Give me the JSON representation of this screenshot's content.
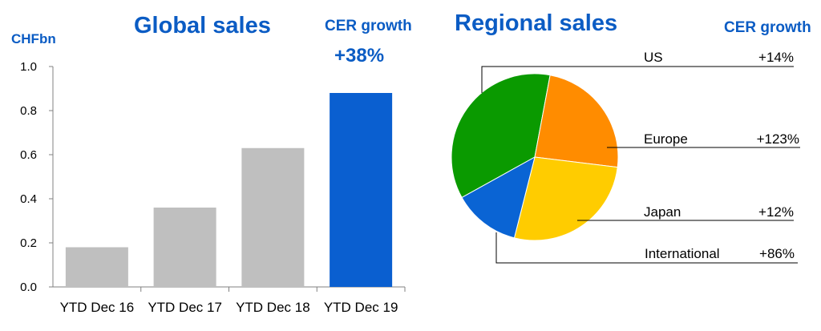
{
  "global": {
    "title": "Global sales",
    "cer_header": "CER growth",
    "cer_value": "+38%",
    "unit": "CHFbn"
  },
  "regional": {
    "title": "Regional sales",
    "cer_header": "CER growth"
  },
  "colors": {
    "accent": "#0b5cc4",
    "gray_bar": "#bfbfbf",
    "highlight_bar": "#0a5fd0",
    "green": "#0a9a00",
    "orange": "#ff8c00",
    "yellow": "#ffcc00",
    "blue": "#0a64d4"
  },
  "chart_data": [
    {
      "type": "bar",
      "title": "Global sales",
      "ylabel": "CHFbn",
      "categories": [
        "YTD Dec 16",
        "YTD Dec 17",
        "YTD Dec 18",
        "YTD Dec 19"
      ],
      "values": [
        0.18,
        0.36,
        0.63,
        0.88
      ],
      "ylim": [
        0,
        1.0
      ],
      "yticks": [
        "0.0",
        "0.2",
        "0.4",
        "0.6",
        "0.8",
        "1.0"
      ],
      "grid": false,
      "highlight_index": 3
    },
    {
      "type": "pie",
      "title": "Regional sales",
      "slices": [
        {
          "label": "US",
          "growth": "+14%",
          "value": 36
        },
        {
          "label": "Europe",
          "growth": "+123%",
          "value": 24
        },
        {
          "label": "Japan",
          "growth": "+12%",
          "value": 27
        },
        {
          "label": "International",
          "growth": "+86%",
          "value": 13
        }
      ]
    }
  ]
}
